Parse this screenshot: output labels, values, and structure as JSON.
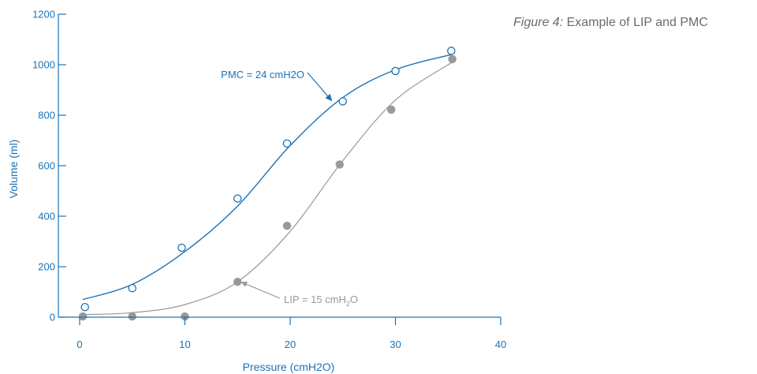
{
  "caption": {
    "figure": "Figure 4:",
    "text": " Example of LIP and PMC"
  },
  "chart_data": {
    "type": "scatter",
    "xlabel": "Pressure (cmH2O)",
    "ylabel": "Volume (ml)",
    "xlim": [
      0,
      40
    ],
    "ylim": [
      0,
      1200
    ],
    "xticks": [
      0,
      10,
      20,
      30,
      40
    ],
    "yticks": [
      0,
      200,
      400,
      600,
      800,
      1000,
      1200
    ],
    "grid": false,
    "colors": {
      "axis": "#1a73b8",
      "inflation": "#1a73b8",
      "deflation": "#999999"
    },
    "series": [
      {
        "marker": "open-circle",
        "color": "#1a73b8",
        "points": [
          [
            0.5,
            40
          ],
          [
            5,
            115
          ],
          [
            9.7,
            275
          ],
          [
            15,
            470
          ],
          [
            19.7,
            688
          ],
          [
            25,
            855
          ],
          [
            30,
            975
          ],
          [
            35.3,
            1055
          ]
        ],
        "fit": [
          [
            0.3,
            70
          ],
          [
            5,
            130
          ],
          [
            10,
            260
          ],
          [
            15,
            440
          ],
          [
            20,
            680
          ],
          [
            25,
            870
          ],
          [
            30,
            980
          ],
          [
            35.3,
            1040
          ]
        ]
      },
      {
        "marker": "filled-circle",
        "color": "#999999",
        "points": [
          [
            0.3,
            3
          ],
          [
            5,
            3
          ],
          [
            10,
            3
          ],
          [
            15,
            140
          ],
          [
            19.7,
            362
          ],
          [
            24.7,
            605
          ],
          [
            29.6,
            822
          ],
          [
            35.4,
            1022
          ]
        ],
        "fit": [
          [
            0.3,
            10
          ],
          [
            5,
            18
          ],
          [
            10,
            50
          ],
          [
            15,
            140
          ],
          [
            20,
            340
          ],
          [
            25,
            620
          ],
          [
            30,
            860
          ],
          [
            35.4,
            1010
          ]
        ]
      }
    ],
    "annotations": [
      {
        "name": "pmc",
        "label": "PMC = 24 cmH2O",
        "target": [
          24,
          855
        ],
        "color": "#1a73b8"
      },
      {
        "name": "lip",
        "label_parts": [
          "LIP = 15 cmH",
          "2",
          "O"
        ],
        "target": [
          15.3,
          140
        ],
        "color": "#999999"
      }
    ]
  }
}
